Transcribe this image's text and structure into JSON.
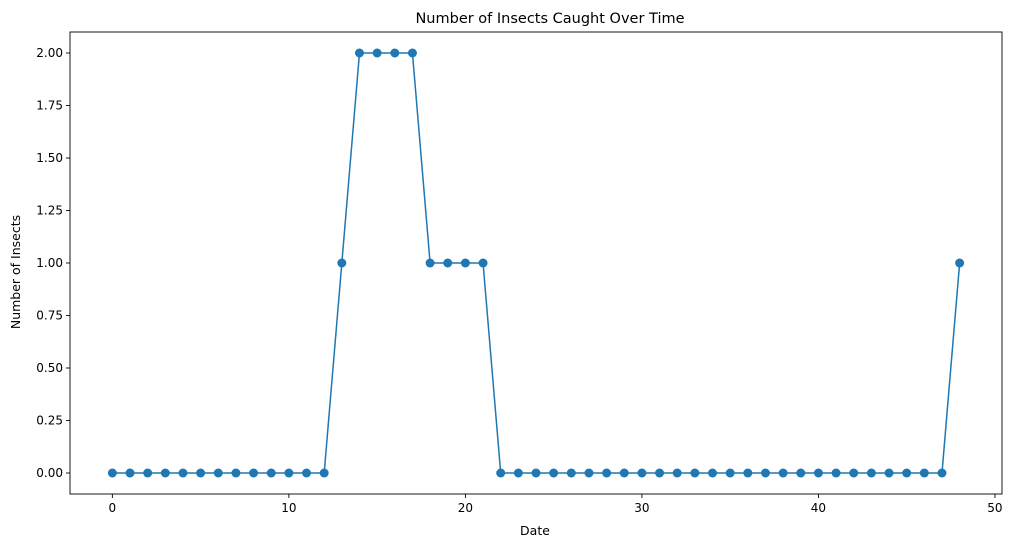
{
  "chart_data": {
    "type": "line",
    "title": "Number of Insects Caught Over Time",
    "xlabel": "Date",
    "ylabel": "Number of Insects",
    "xlim": [
      -2.4,
      50.4
    ],
    "ylim": [
      -0.1,
      2.1
    ],
    "xticks": [
      0,
      10,
      20,
      30,
      40,
      50
    ],
    "xtick_labels": [
      "0",
      "10",
      "20",
      "30",
      "40",
      "50"
    ],
    "yticks": [
      0,
      0.25,
      0.5,
      0.75,
      1,
      1.25,
      1.5,
      1.75,
      2
    ],
    "ytick_labels": [
      "0.00",
      "0.25",
      "0.50",
      "0.75",
      "1.00",
      "1.25",
      "1.50",
      "1.75",
      "2.00"
    ],
    "grid": false,
    "markers": true,
    "color": "#1f77b4",
    "series": [
      {
        "x": [
          0,
          1,
          2,
          3,
          4,
          5,
          6,
          7,
          8,
          9,
          10,
          11,
          12,
          13,
          14,
          15,
          16,
          17,
          18,
          19,
          20,
          21,
          22,
          23,
          24,
          25,
          26,
          27,
          28,
          29,
          30,
          31,
          32,
          33,
          34,
          35,
          36,
          37,
          38,
          39,
          40,
          41,
          42,
          43,
          44,
          45,
          46,
          47,
          48
        ],
        "values": [
          0,
          0,
          0,
          0,
          0,
          0,
          0,
          0,
          0,
          0,
          0,
          0,
          0,
          1,
          2,
          2,
          2,
          2,
          1,
          1,
          1,
          1,
          0,
          0,
          0,
          0,
          0,
          0,
          0,
          0,
          0,
          0,
          0,
          0,
          0,
          0,
          0,
          0,
          0,
          0,
          0,
          0,
          0,
          0,
          0,
          0,
          0,
          0,
          1
        ]
      }
    ]
  }
}
